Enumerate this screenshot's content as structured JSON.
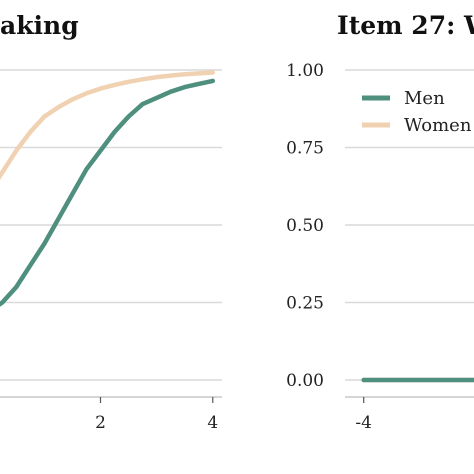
{
  "chart_data": [
    {
      "type": "line",
      "panel": "left",
      "title": "aking",
      "xlabel": "",
      "ylabel": "",
      "xlim": [
        -0.2,
        4.2
      ],
      "ylim": [
        0,
        1
      ],
      "x_ticks": [
        2,
        4
      ],
      "y_ticks": [
        0,
        0.25,
        0.5,
        0.75,
        1
      ],
      "grid": "horizontal",
      "series": [
        {
          "name": "Men",
          "color": "#4e8f7e",
          "x": [
            0,
            0.25,
            0.5,
            0.75,
            1,
            1.25,
            1.5,
            1.75,
            2,
            2.25,
            2.5,
            2.75,
            3,
            3.25,
            3.5,
            3.75,
            4
          ],
          "y": [
            0.22,
            0.25,
            0.3,
            0.37,
            0.44,
            0.52,
            0.6,
            0.68,
            0.74,
            0.8,
            0.85,
            0.89,
            0.91,
            0.93,
            0.945,
            0.955,
            0.965
          ]
        },
        {
          "name": "Women",
          "color": "#f0d2b3",
          "x": [
            0,
            0.25,
            0.5,
            0.75,
            1,
            1.25,
            1.5,
            1.75,
            2,
            2.25,
            2.5,
            2.75,
            3,
            3.25,
            3.5,
            3.75,
            4
          ],
          "y": [
            0.6,
            0.67,
            0.74,
            0.8,
            0.85,
            0.88,
            0.905,
            0.925,
            0.94,
            0.952,
            0.962,
            0.97,
            0.977,
            0.982,
            0.986,
            0.989,
            0.992
          ]
        }
      ]
    },
    {
      "type": "line",
      "panel": "right",
      "title": "Item 27: W",
      "xlabel": "",
      "ylabel": "",
      "xlim": [
        -4.2,
        -2.5
      ],
      "ylim": [
        0,
        1
      ],
      "x_ticks": [
        -4
      ],
      "y_ticks": [
        0,
        0.25,
        0.5,
        0.75,
        1
      ],
      "y_tick_labels": [
        "0.00",
        "0.25",
        "0.50",
        "0.75",
        "1.00"
      ],
      "grid": "horizontal",
      "legend": {
        "position": "top-left",
        "entries": [
          "Men",
          "Women"
        ]
      },
      "series": [
        {
          "name": "Men",
          "color": "#4e8f7e",
          "x": [
            -4,
            -2.5
          ],
          "y": [
            0,
            0
          ]
        },
        {
          "name": "Women",
          "color": "#f0d2b3",
          "x": [
            -4,
            -2.5
          ],
          "y": [
            0,
            0
          ]
        }
      ]
    }
  ]
}
